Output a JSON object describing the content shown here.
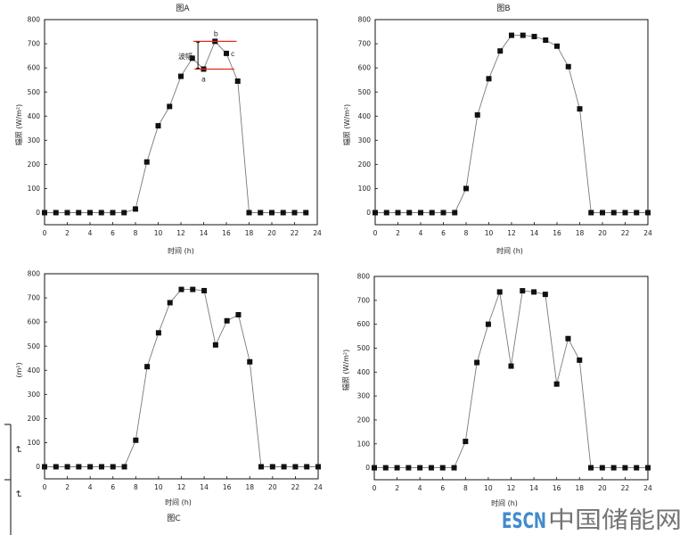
{
  "figure": {
    "margin_marks": [
      "↵",
      "↵"
    ],
    "watermark": {
      "brand": "ESCN",
      "name": "中国储能网"
    }
  },
  "colors": {
    "series_line": "#7a7a7a",
    "marker": "#111111",
    "frame": "#111111",
    "annotation_line": "#e5281b",
    "watermark_brand": "#2d7fc6",
    "watermark_name": "#666666"
  },
  "chart_data": [
    {
      "type": "line",
      "title": "图A",
      "xlabel": "时间 (h)",
      "ylabel": "辐照 (W/m²)",
      "xlim": [
        0,
        24
      ],
      "ylim": [
        -50,
        800
      ],
      "xticks": [
        0,
        2,
        4,
        6,
        8,
        10,
        12,
        14,
        16,
        18,
        20,
        22,
        24
      ],
      "yticks": [
        0,
        100,
        200,
        300,
        400,
        500,
        600,
        700,
        800
      ],
      "grid": false,
      "legend": "none",
      "x": [
        0,
        1,
        2,
        3,
        4,
        5,
        6,
        7,
        8,
        9,
        10,
        11,
        12,
        13,
        14,
        15,
        16,
        17,
        18,
        19,
        20,
        21,
        22,
        23
      ],
      "y": [
        0,
        0,
        0,
        0,
        0,
        0,
        0,
        0,
        15,
        210,
        360,
        440,
        565,
        640,
        595,
        710,
        660,
        545,
        0,
        0,
        0,
        0,
        0,
        0
      ],
      "annotation": {
        "label": "波幅",
        "upper": 710,
        "lower": 595,
        "points": [
          {
            "label": "a",
            "x": 14,
            "position": "below"
          },
          {
            "label": "b",
            "x": 15,
            "position": "above"
          },
          {
            "label": "c",
            "x": 16,
            "position": "right"
          }
        ]
      }
    },
    {
      "type": "line",
      "title": "图B",
      "xlabel": "时间 (h)",
      "ylabel": "辐照 (W/m²)",
      "xlim": [
        0,
        24
      ],
      "ylim": [
        -50,
        800
      ],
      "xticks": [
        0,
        2,
        4,
        6,
        8,
        10,
        12,
        14,
        16,
        18,
        20,
        22,
        24
      ],
      "yticks": [
        0,
        100,
        200,
        300,
        400,
        500,
        600,
        700,
        800
      ],
      "grid": false,
      "legend": "none",
      "x": [
        0,
        1,
        2,
        3,
        4,
        5,
        6,
        7,
        8,
        9,
        10,
        11,
        12,
        13,
        14,
        15,
        16,
        17,
        18,
        19,
        20,
        21,
        22,
        23,
        24
      ],
      "y": [
        0,
        0,
        0,
        0,
        0,
        0,
        0,
        0,
        100,
        405,
        555,
        670,
        735,
        735,
        730,
        715,
        690,
        605,
        430,
        0,
        0,
        0,
        0,
        0,
        0
      ]
    },
    {
      "type": "line",
      "title": "图C",
      "xlabel": "时间 (h)",
      "ylabel": "(m²)",
      "xlim": [
        0,
        24
      ],
      "ylim": [
        -50,
        800
      ],
      "xticks": [
        0,
        2,
        4,
        6,
        8,
        10,
        12,
        14,
        16,
        18,
        20,
        22,
        24
      ],
      "yticks": [
        0,
        100,
        200,
        300,
        400,
        500,
        600,
        700,
        800
      ],
      "grid": false,
      "legend": "none",
      "x": [
        0,
        1,
        2,
        3,
        4,
        5,
        6,
        7,
        8,
        9,
        10,
        11,
        12,
        13,
        14,
        15,
        16,
        17,
        18,
        19,
        20,
        21,
        22,
        23,
        24
      ],
      "y": [
        0,
        0,
        0,
        0,
        0,
        0,
        0,
        0,
        110,
        415,
        555,
        680,
        735,
        735,
        730,
        505,
        605,
        630,
        435,
        0,
        0,
        0,
        0,
        0,
        0
      ]
    },
    {
      "type": "line",
      "xlabel": "时间 (h)",
      "ylabel": "辐照 (W/m²)",
      "xlim": [
        0,
        24
      ],
      "ylim": [
        -50,
        800
      ],
      "xticks": [
        0,
        2,
        4,
        6,
        8,
        10,
        12,
        14,
        16,
        18,
        20,
        22,
        24
      ],
      "yticks": [
        0,
        100,
        200,
        300,
        400,
        500,
        600,
        700,
        800
      ],
      "grid": false,
      "legend": "none",
      "x": [
        0,
        1,
        2,
        3,
        4,
        5,
        6,
        7,
        8,
        9,
        10,
        11,
        12,
        13,
        14,
        15,
        16,
        17,
        18,
        19,
        20,
        21,
        22,
        23,
        24
      ],
      "y": [
        0,
        0,
        0,
        0,
        0,
        0,
        0,
        0,
        110,
        440,
        600,
        735,
        425,
        740,
        735,
        725,
        350,
        540,
        450,
        0,
        0,
        0,
        0,
        0,
        0
      ]
    }
  ]
}
